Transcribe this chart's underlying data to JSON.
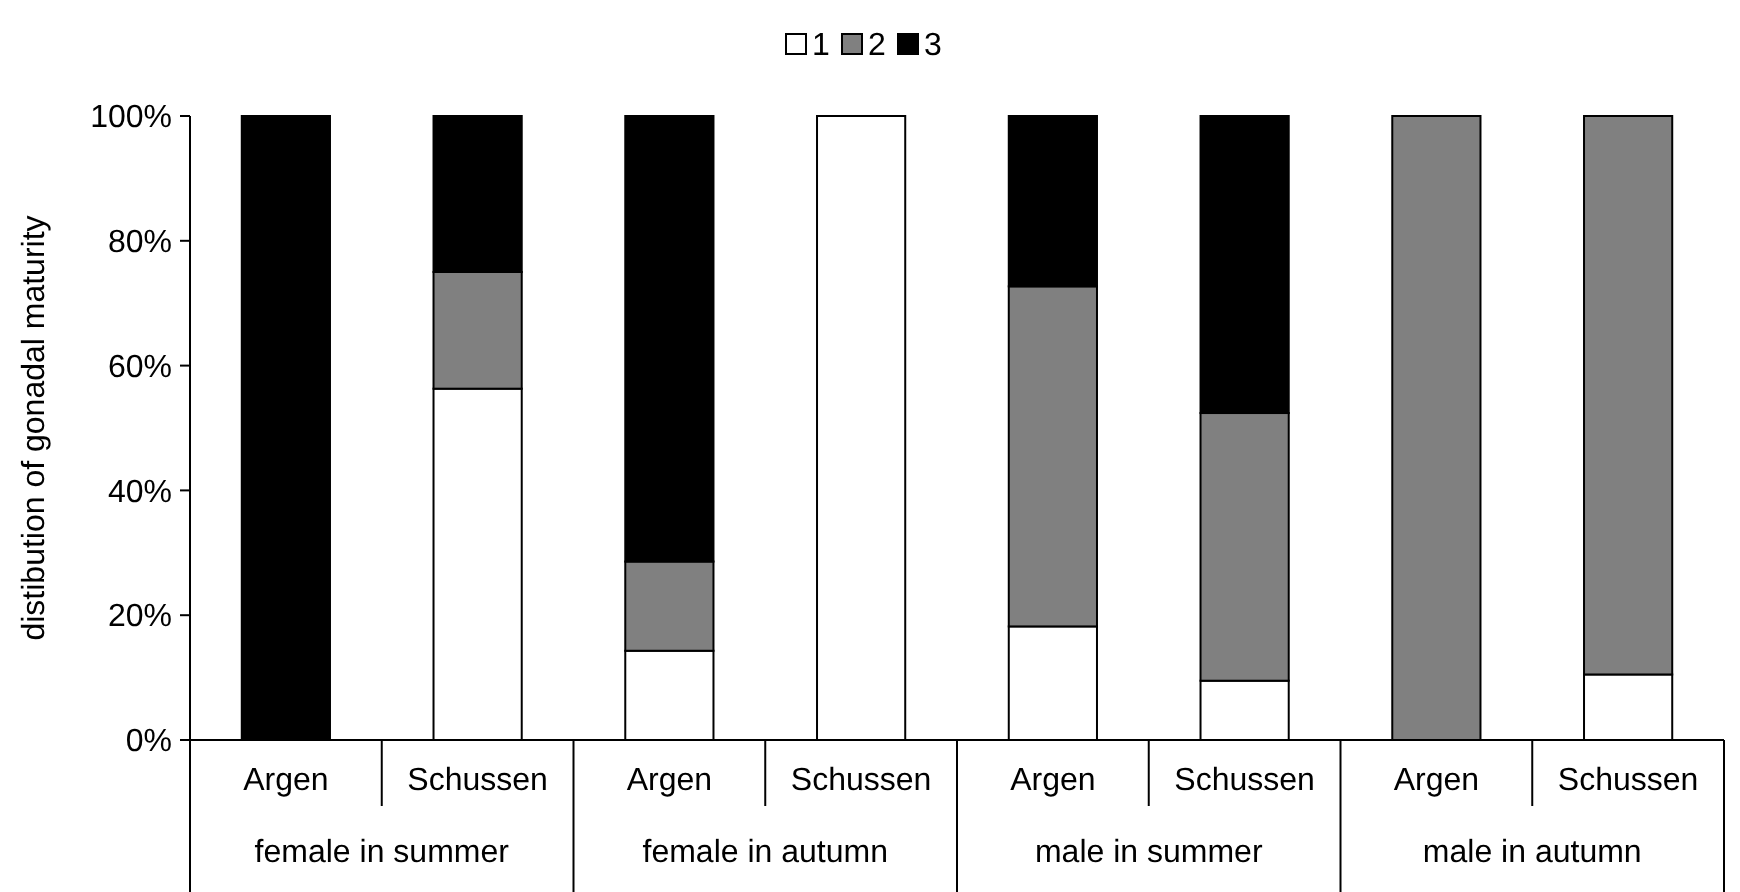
{
  "chart_data": {
    "type": "bar",
    "stacked": true,
    "ylabel": "distibution of gonadal maturity",
    "categories": [
      "Argen",
      "Schussen",
      "Argen",
      "Schussen",
      "Argen",
      "Schussen",
      "Argen",
      "Schussen"
    ],
    "annotations": [
      "female in summer",
      "female in autumn",
      "male in summer",
      "male in autumn"
    ],
    "series": [
      {
        "name": "1",
        "color": "#ffffff",
        "values": [
          0,
          56.3,
          14.3,
          100,
          18.2,
          9.5,
          0,
          10.5
        ]
      },
      {
        "name": "2",
        "color": "#808080",
        "values": [
          0,
          18.7,
          14.3,
          0,
          54.5,
          42.9,
          100,
          89.5
        ]
      },
      {
        "name": "3",
        "color": "#000000",
        "values": [
          100,
          25,
          71.4,
          0,
          27.3,
          47.6,
          0,
          0
        ]
      }
    ],
    "ylim": [
      0,
      100
    ],
    "yticks": [
      {
        "value": 0,
        "label": "0%"
      },
      {
        "value": 20,
        "label": "20%"
      },
      {
        "value": 40,
        "label": "40%"
      },
      {
        "value": 60,
        "label": "60%"
      },
      {
        "value": 80,
        "label": "80%"
      },
      {
        "value": 100,
        "label": "100%"
      }
    ],
    "grid": false,
    "legend": "top"
  }
}
